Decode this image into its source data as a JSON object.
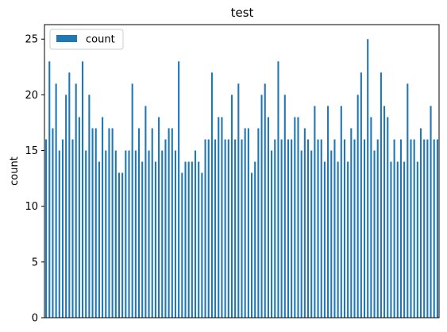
{
  "chart_data": {
    "type": "bar",
    "title": "test",
    "xlabel": "",
    "ylabel": "count",
    "ylim": [
      0,
      26.3
    ],
    "yticks": [
      0,
      5,
      10,
      15,
      20,
      25
    ],
    "grid": false,
    "legend_position": "top-left",
    "series": [
      {
        "name": "count",
        "color": "#1f77b4",
        "values": [
          16,
          23,
          17,
          21,
          15,
          16,
          20,
          22,
          16,
          21,
          18,
          23,
          15,
          20,
          17,
          17,
          14,
          18,
          15,
          17,
          17,
          15,
          13,
          13,
          15,
          15,
          21,
          15,
          17,
          14,
          19,
          15,
          17,
          14,
          18,
          15,
          16,
          17,
          17,
          15,
          23,
          13,
          14,
          14,
          14,
          15,
          14,
          13,
          16,
          16,
          22,
          16,
          18,
          18,
          16,
          16,
          20,
          16,
          21,
          16,
          17,
          17,
          13,
          14,
          17,
          20,
          21,
          18,
          15,
          16,
          23,
          16,
          20,
          16,
          16,
          18,
          18,
          15,
          17,
          16,
          15,
          19,
          16,
          16,
          14,
          19,
          15,
          16,
          14,
          19,
          16,
          14,
          17,
          16,
          20,
          22,
          16,
          25,
          18,
          15,
          16,
          22,
          19,
          18,
          14,
          16,
          14,
          16,
          14,
          21,
          16,
          16,
          14,
          17,
          16,
          16,
          19,
          16,
          16
        ]
      }
    ]
  }
}
